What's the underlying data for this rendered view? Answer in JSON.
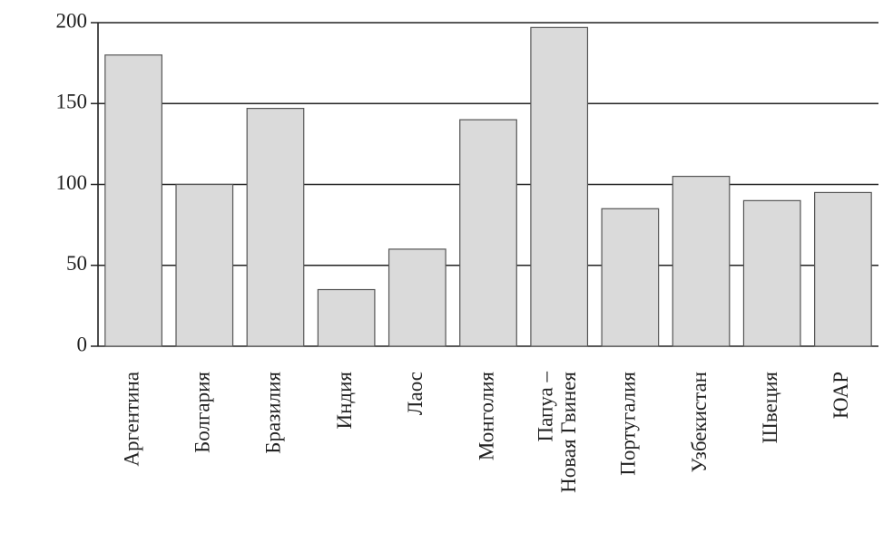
{
  "chart_data": {
    "type": "bar",
    "categories": [
      "Аргентина",
      "Болгария",
      "Бразилия",
      "Индия",
      "Лаос",
      "Монголия",
      "Папуа –\nНовая Гвинея",
      "Португалия",
      "Узбекистан",
      "Швеция",
      "ЮАР"
    ],
    "values": [
      180,
      100,
      147,
      35,
      60,
      140,
      197,
      85,
      105,
      90,
      95
    ],
    "color": "#dadada",
    "ylim": [
      0,
      200
    ],
    "yticks": [
      0,
      50,
      100,
      150,
      200
    ],
    "grid": true
  }
}
